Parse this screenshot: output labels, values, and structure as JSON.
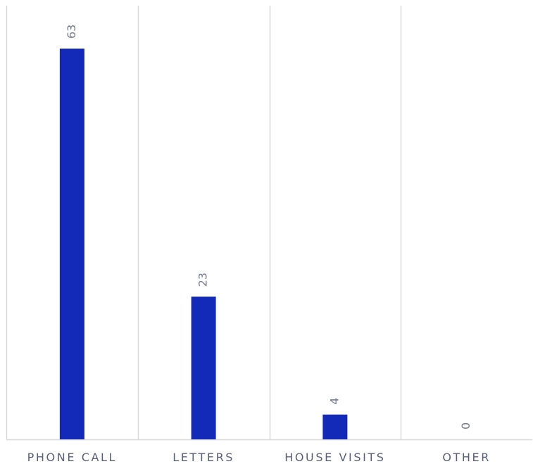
{
  "chart_data": {
    "type": "bar",
    "categories": [
      "PHONE CALL",
      "LETTERS",
      "HOUSE VISITS",
      "OTHER"
    ],
    "values": [
      63,
      23,
      4,
      0
    ],
    "data_labels": [
      "63",
      "23",
      "4",
      "0"
    ],
    "title": "",
    "xlabel": "",
    "ylabel": "",
    "ylim": [
      0,
      70
    ],
    "grid": "vertical separators between categories",
    "legend": "none",
    "bar_color": "#1329b8",
    "label_color": "#5a5f78",
    "data_label_color": "#767b92",
    "grid_color": "#d9d9d9"
  }
}
